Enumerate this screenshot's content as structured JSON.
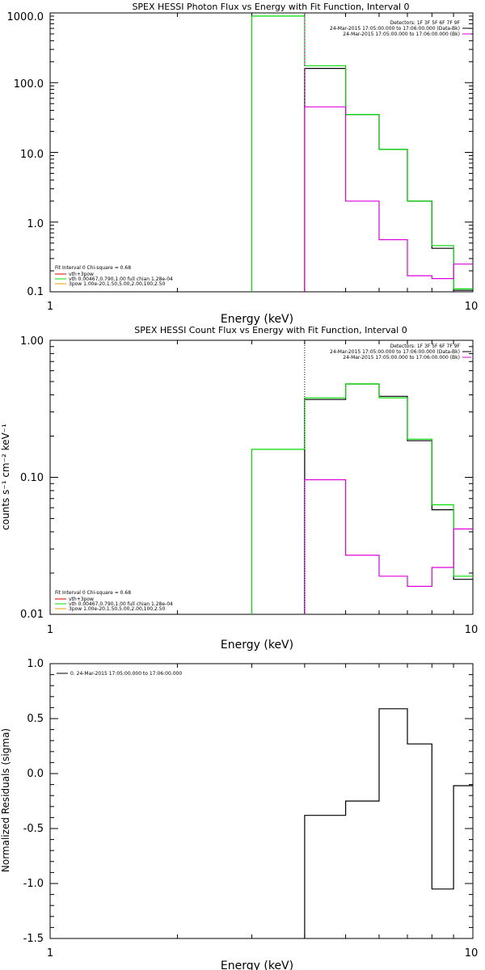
{
  "colors": {
    "black": "#000000",
    "green": "#00dd00",
    "magenta": "#dd00dd",
    "orange": "#ee9900",
    "red": "#dd0000"
  },
  "chart_data": [
    {
      "type": "line",
      "step": true,
      "title": "SPEX HESSI Photon Flux vs Energy with Fit Function, Interval 0",
      "xlabel": "Energy (keV)",
      "ylabel": "",
      "xscale": "log",
      "yscale": "log",
      "xlim": [
        1,
        10
      ],
      "ylim": [
        0.1,
        1000
      ],
      "xtick_labels": [
        "1",
        "10"
      ],
      "ytick_labels": [
        "0.1",
        "1.0",
        "10.0",
        "100.0",
        "1000.0"
      ],
      "bin_edges": [
        3.0,
        4.0,
        5.0,
        6.0,
        7.0,
        8.0,
        9.0,
        10.0
      ],
      "series": [
        {
          "name": "24-Mar-2015 17:05:00.000 to 17:06:00.000 (Data-Bk)",
          "color": "black",
          "values": [
            null,
            160,
            35,
            11,
            2.0,
            0.42,
            0.105
          ]
        },
        {
          "name": "vth+3pow",
          "color": "green",
          "values": [
            900,
            175,
            35,
            11,
            2.0,
            0.46,
            0.11
          ]
        },
        {
          "name": "24-Mar-2015 17:05:00.000 to 17:06:00.000 (Bk)",
          "color": "magenta",
          "values": [
            null,
            45,
            2.0,
            0.56,
            0.17,
            0.155,
            0.25
          ]
        }
      ],
      "vlines": [
        {
          "x": 4.0,
          "style": "dashed",
          "color": "magenta"
        }
      ],
      "legend_position": "top-right",
      "legend": {
        "line1": "Detectors: 1F 3F 5F 6F 7F 9F",
        "line2": "24-Mar-2015 17:05:00.000 to 17:06:00.000 (Data-Bk)",
        "line3": "24-Mar-2015 17:05:00.000 to 17:06:00.000 (Bk)"
      },
      "fit_info": {
        "header": "Fit Interval 0   Chi-square = 0.68",
        "item1": "vth+3pow",
        "item2": "vth 0.00467,0.790,1.00   full chian 1.28e-04",
        "item3": "3pow 1.00e-20,1.50,5.00,2.00,100,2.50"
      }
    },
    {
      "type": "line",
      "step": true,
      "title": "SPEX HESSI Count Flux vs Energy with Fit Function, Interval 0",
      "xlabel": "Energy (keV)",
      "ylabel": "counts s⁻¹ cm⁻² keV⁻¹",
      "xscale": "log",
      "yscale": "log",
      "xlim": [
        1,
        10
      ],
      "ylim": [
        0.01,
        1.0
      ],
      "xtick_labels": [
        "1",
        "10"
      ],
      "ytick_labels": [
        "0.01",
        "0.10",
        "1.00"
      ],
      "bin_edges": [
        3.0,
        4.0,
        5.0,
        6.0,
        7.0,
        8.0,
        9.0,
        10.0
      ],
      "series": [
        {
          "name": "24-Mar-2015 17:05:00.000 to 17:06:00.000 (Data-Bk)",
          "color": "black",
          "values": [
            null,
            0.37,
            0.48,
            0.39,
            0.185,
            0.058,
            0.018
          ]
        },
        {
          "name": "vth+3pow",
          "color": "green",
          "values": [
            0.16,
            0.38,
            0.48,
            0.38,
            0.19,
            0.063,
            0.019
          ]
        },
        {
          "name": "24-Mar-2015 17:05:00.000 to 17:06:00.000 (Bk)",
          "color": "magenta",
          "values": [
            null,
            0.096,
            0.027,
            0.019,
            0.016,
            0.022,
            0.042
          ]
        }
      ],
      "vlines": [
        {
          "x": 4.0,
          "style": "dotted",
          "color": "black"
        }
      ],
      "legend_position": "top-right",
      "legend": {
        "line1": "Detectors: 1F 3F 5F 6F 7F 9F",
        "line2": "24-Mar-2015 17:05:00.000 to 17:06:00.000 (Data-Bk)",
        "line3": "24-Mar-2015 17:05:00.000 to 17:06:00.000 (Bk)"
      },
      "fit_info": {
        "header": "Fit Interval 0   Chi-square = 0.68",
        "item1": "vth+3pow",
        "item2": "vth 0.00467,0.790,1.00   full chian 1.28e-04",
        "item3": "3pow 1.00e-20,1.50,5.00,2.00,100,2.50"
      }
    },
    {
      "type": "line",
      "step": true,
      "title": "",
      "xlabel": "Energy (keV)",
      "ylabel": "Normalized Residuals (sigma)",
      "xscale": "log",
      "yscale": "linear",
      "xlim": [
        1,
        10
      ],
      "ylim": [
        -1.5,
        1.0
      ],
      "xtick_labels": [
        "1",
        "10"
      ],
      "ytick_labels": [
        "-1.5",
        "-1.0",
        "-0.5",
        "0.0",
        "0.5",
        "1.0"
      ],
      "bin_edges": [
        4.0,
        5.0,
        6.0,
        7.0,
        8.0,
        9.0,
        10.0
      ],
      "series": [
        {
          "name": "0. 24-Mar-2015 17:05:00.000 to 17:06:00.000",
          "color": "black",
          "values": [
            -0.38,
            -0.25,
            0.59,
            0.27,
            -1.05,
            -0.11
          ]
        }
      ],
      "legend_position": "top-left"
    }
  ]
}
